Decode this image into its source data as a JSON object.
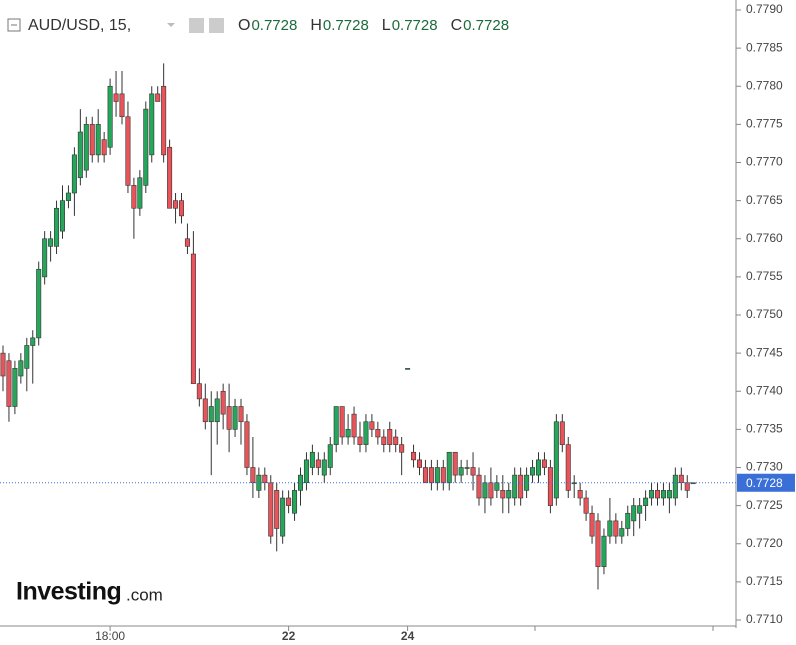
{
  "chart_data": {
    "type": "candlestick",
    "title": "AUD/USD, 15,",
    "ohlc_header": [
      {
        "label": "O",
        "value": 0.7728
      },
      {
        "label": "H",
        "value": 0.7728
      },
      {
        "label": "L",
        "value": 0.7728
      },
      {
        "label": "C",
        "value": 0.7728
      }
    ],
    "last_price": 0.7728,
    "brand": "Investing",
    "brand_suffix": ".com",
    "up_color": "#26a65b",
    "down_color": "#e8545a",
    "categories": [
      null,
      null,
      null,
      null,
      null,
      null,
      null,
      null,
      null,
      null,
      null,
      null,
      null,
      null,
      null,
      null,
      null,
      null,
      "18:00",
      null,
      null,
      null,
      null,
      null,
      null,
      null,
      null,
      null,
      null,
      null,
      null,
      null,
      null,
      null,
      null,
      null,
      null,
      null,
      null,
      null,
      null,
      null,
      null,
      null,
      null,
      null,
      null,
      null,
      "22",
      null,
      null,
      null,
      null,
      null,
      null,
      null,
      null,
      null,
      null,
      null,
      null,
      null,
      null,
      null,
      null,
      null,
      null,
      null,
      "24",
      null,
      null,
      null,
      null,
      null,
      null,
      null,
      null,
      null,
      null,
      null,
      null,
      null,
      null,
      null,
      null,
      null,
      null,
      null,
      null,
      null,
      null,
      null,
      null,
      null,
      null,
      null,
      null,
      null,
      null,
      null,
      null,
      null,
      null,
      null,
      null,
      null,
      null,
      null,
      null,
      null,
      null,
      null,
      null,
      null,
      null,
      null,
      null
    ],
    "ohlc": [
      [
        0.7745,
        0.7746,
        0.774,
        0.7742
      ],
      [
        0.7744,
        0.7745,
        0.7736,
        0.7738
      ],
      [
        0.7738,
        0.7744,
        0.7737,
        0.7743
      ],
      [
        0.7742,
        0.7745,
        0.7741,
        0.7744
      ],
      [
        0.7743,
        0.7747,
        0.774,
        0.7746
      ],
      [
        0.7746,
        0.7748,
        0.7741,
        0.7747
      ],
      [
        0.7747,
        0.7757,
        0.7746,
        0.7756
      ],
      [
        0.7755,
        0.7761,
        0.7754,
        0.776
      ],
      [
        0.7759,
        0.7761,
        0.7757,
        0.776
      ],
      [
        0.7759,
        0.7765,
        0.7758,
        0.7764
      ],
      [
        0.7761,
        0.7767,
        0.776,
        0.7765
      ],
      [
        0.7765,
        0.7767,
        0.7764,
        0.7766
      ],
      [
        0.7766,
        0.7772,
        0.7763,
        0.7771
      ],
      [
        0.7768,
        0.7777,
        0.7767,
        0.7774
      ],
      [
        0.7769,
        0.7776,
        0.7768,
        0.7775
      ],
      [
        0.7775,
        0.7776,
        0.777,
        0.7771
      ],
      [
        0.7771,
        0.7777,
        0.777,
        0.7775
      ],
      [
        0.7773,
        0.7774,
        0.777,
        0.7771
      ],
      [
        0.7772,
        0.7781,
        0.7771,
        0.778
      ],
      [
        0.7779,
        0.7782,
        0.7776,
        0.7778
      ],
      [
        0.7779,
        0.7782,
        0.7775,
        0.7776
      ],
      [
        0.7776,
        0.7778,
        0.7766,
        0.7767
      ],
      [
        0.7767,
        0.7768,
        0.776,
        0.7764
      ],
      [
        0.7764,
        0.7769,
        0.7763,
        0.7768
      ],
      [
        0.7767,
        0.7778,
        0.7766,
        0.7777
      ],
      [
        0.7771,
        0.778,
        0.777,
        0.7779
      ],
      [
        0.7779,
        0.778,
        0.7778,
        0.7778
      ],
      [
        0.778,
        0.7783,
        0.777,
        0.7771
      ],
      [
        0.7772,
        0.7773,
        0.7764,
        0.7764
      ],
      [
        0.7765,
        0.7766,
        0.7762,
        0.7764
      ],
      [
        0.7765,
        0.7766,
        0.7762,
        0.7763
      ],
      [
        0.776,
        0.7762,
        0.7758,
        0.7759
      ],
      [
        0.7758,
        0.7761,
        0.7741,
        0.7741
      ],
      [
        0.7741,
        0.7743,
        0.7738,
        0.7739
      ],
      [
        0.7739,
        0.7741,
        0.7735,
        0.7736
      ],
      [
        0.7736,
        0.774,
        0.7729,
        0.7738
      ],
      [
        0.7736,
        0.774,
        0.7733,
        0.7739
      ],
      [
        0.774,
        0.7741,
        0.7735,
        0.7737
      ],
      [
        0.7738,
        0.7741,
        0.7732,
        0.7735
      ],
      [
        0.7735,
        0.7739,
        0.7734,
        0.7738
      ],
      [
        0.7738,
        0.7739,
        0.7733,
        0.7736
      ],
      [
        0.7736,
        0.7737,
        0.7729,
        0.773
      ],
      [
        0.773,
        0.7734,
        0.7726,
        0.7728
      ],
      [
        0.7727,
        0.773,
        0.7726,
        0.7729
      ],
      [
        0.7729,
        0.773,
        0.7727,
        0.7728
      ],
      [
        0.7728,
        0.7729,
        0.772,
        0.7721
      ],
      [
        0.7727,
        0.7728,
        0.7719,
        0.7722
      ],
      [
        0.7721,
        0.7727,
        0.772,
        0.7726
      ],
      [
        0.7726,
        0.7727,
        0.7724,
        0.7725
      ],
      [
        0.7724,
        0.7728,
        0.7723,
        0.7727
      ],
      [
        0.7727,
        0.773,
        0.7725,
        0.7729
      ],
      [
        0.7728,
        0.7732,
        0.7727,
        0.7731
      ],
      [
        0.773,
        0.7733,
        0.7729,
        0.7732
      ],
      [
        0.7731,
        0.7732,
        0.7729,
        0.773
      ],
      [
        0.7729,
        0.7732,
        0.7728,
        0.7731
      ],
      [
        0.773,
        0.7734,
        0.7729,
        0.7733
      ],
      [
        0.7733,
        0.7738,
        0.7732,
        0.7738
      ],
      [
        0.7738,
        0.7738,
        0.7733,
        0.7734
      ],
      [
        0.7734,
        0.7737,
        0.7733,
        0.7735
      ],
      [
        0.7737,
        0.7738,
        0.7733,
        0.7734
      ],
      [
        0.7734,
        0.7736,
        0.7732,
        0.7733
      ],
      [
        0.7733,
        0.7737,
        0.7732,
        0.7736
      ],
      [
        0.7736,
        0.7737,
        0.7734,
        0.7735
      ],
      [
        0.7735,
        0.7736,
        0.7733,
        0.7734
      ],
      [
        0.7734,
        0.7735,
        0.7732,
        0.7733
      ],
      [
        0.7735,
        0.7736,
        0.7732,
        0.7733
      ],
      [
        0.7734,
        0.7735,
        0.7732,
        0.7733
      ],
      [
        0.7733,
        0.7734,
        0.7729,
        0.7732
      ],
      [
        0.7743,
        0.7743,
        0.7743,
        0.7743
      ],
      [
        0.7732,
        0.7733,
        0.773,
        0.7731
      ],
      [
        0.7731,
        0.7732,
        0.7729,
        0.773
      ],
      [
        0.773,
        0.7731,
        0.7728,
        0.7728
      ],
      [
        0.773,
        0.7731,
        0.7727,
        0.7728
      ],
      [
        0.7728,
        0.7731,
        0.7727,
        0.773
      ],
      [
        0.773,
        0.7731,
        0.7727,
        0.7728
      ],
      [
        0.7728,
        0.7732,
        0.7727,
        0.7732
      ],
      [
        0.7732,
        0.7732,
        0.7728,
        0.7729
      ],
      [
        0.7729,
        0.7731,
        0.7728,
        0.773
      ],
      [
        0.773,
        0.7731,
        0.7729,
        0.773
      ],
      [
        0.773,
        0.7732,
        0.7727,
        0.7729
      ],
      [
        0.7729,
        0.773,
        0.7725,
        0.7726
      ],
      [
        0.7726,
        0.7729,
        0.7724,
        0.7728
      ],
      [
        0.7728,
        0.773,
        0.7725,
        0.7726
      ],
      [
        0.7727,
        0.7729,
        0.7726,
        0.7728
      ],
      [
        0.7727,
        0.7729,
        0.7724,
        0.7726
      ],
      [
        0.7726,
        0.7728,
        0.7724,
        0.7727
      ],
      [
        0.7726,
        0.773,
        0.7725,
        0.7729
      ],
      [
        0.7729,
        0.773,
        0.7725,
        0.7726
      ],
      [
        0.7727,
        0.773,
        0.7726,
        0.7729
      ],
      [
        0.7729,
        0.7731,
        0.7728,
        0.773
      ],
      [
        0.7729,
        0.7732,
        0.7728,
        0.7731
      ],
      [
        0.7731,
        0.7732,
        0.7729,
        0.773
      ],
      [
        0.773,
        0.7731,
        0.7724,
        0.7725
      ],
      [
        0.7726,
        0.7737,
        0.7725,
        0.7736
      ],
      [
        0.7736,
        0.7737,
        0.7732,
        0.7733
      ],
      [
        0.7733,
        0.7734,
        0.7726,
        0.7727
      ],
      [
        0.7728,
        0.7729,
        0.7726,
        0.7728
      ],
      [
        0.7727,
        0.7728,
        0.7725,
        0.7726
      ],
      [
        0.7726,
        0.7727,
        0.7723,
        0.7724
      ],
      [
        0.7724,
        0.7725,
        0.772,
        0.7721
      ],
      [
        0.7723,
        0.7724,
        0.7714,
        0.7717
      ],
      [
        0.7717,
        0.7722,
        0.7716,
        0.7721
      ],
      [
        0.7721,
        0.7726,
        0.772,
        0.7723
      ],
      [
        0.7723,
        0.7724,
        0.772,
        0.7721
      ],
      [
        0.7721,
        0.7723,
        0.772,
        0.7722
      ],
      [
        0.7722,
        0.7725,
        0.7721,
        0.7724
      ],
      [
        0.7723,
        0.7726,
        0.7721,
        0.7725
      ],
      [
        0.7724,
        0.7726,
        0.7722,
        0.7725
      ],
      [
        0.7725,
        0.7727,
        0.7723,
        0.7726
      ],
      [
        0.7726,
        0.7728,
        0.7725,
        0.7727
      ],
      [
        0.7727,
        0.7728,
        0.7725,
        0.7726
      ],
      [
        0.7726,
        0.7728,
        0.7725,
        0.7727
      ],
      [
        0.7726,
        0.7728,
        0.7724,
        0.7727
      ],
      [
        0.7726,
        0.773,
        0.7725,
        0.7729
      ],
      [
        0.7729,
        0.773,
        0.7727,
        0.7728
      ],
      [
        0.7728,
        0.7729,
        0.7726,
        0.7727
      ],
      [
        0.7728,
        0.7728,
        0.7728,
        0.7728
      ]
    ],
    "ylim": [
      0.771,
      0.779
    ],
    "yticks": [
      {
        "value": 0.771,
        "label": "0.7710"
      },
      {
        "value": 0.7715,
        "label": "0.7715"
      },
      {
        "value": 0.772,
        "label": "0.7720"
      },
      {
        "value": 0.7725,
        "label": "0.7725"
      },
      {
        "value": 0.773,
        "label": "0.7730"
      },
      {
        "value": 0.7735,
        "label": "0.7735"
      },
      {
        "value": 0.774,
        "label": "0.7740"
      },
      {
        "value": 0.7745,
        "label": "0.7745"
      },
      {
        "value": 0.775,
        "label": "0.7750"
      },
      {
        "value": 0.7755,
        "label": "0.7755"
      },
      {
        "value": 0.776,
        "label": "0.7760"
      },
      {
        "value": 0.7765,
        "label": "0.7765"
      },
      {
        "value": 0.777,
        "label": "0.7770"
      },
      {
        "value": 0.7775,
        "label": "0.7775"
      },
      {
        "value": 0.778,
        "label": "0.7780"
      },
      {
        "value": 0.7785,
        "label": "0.7785"
      },
      {
        "value": 0.779,
        "label": "0.7790"
      }
    ]
  }
}
